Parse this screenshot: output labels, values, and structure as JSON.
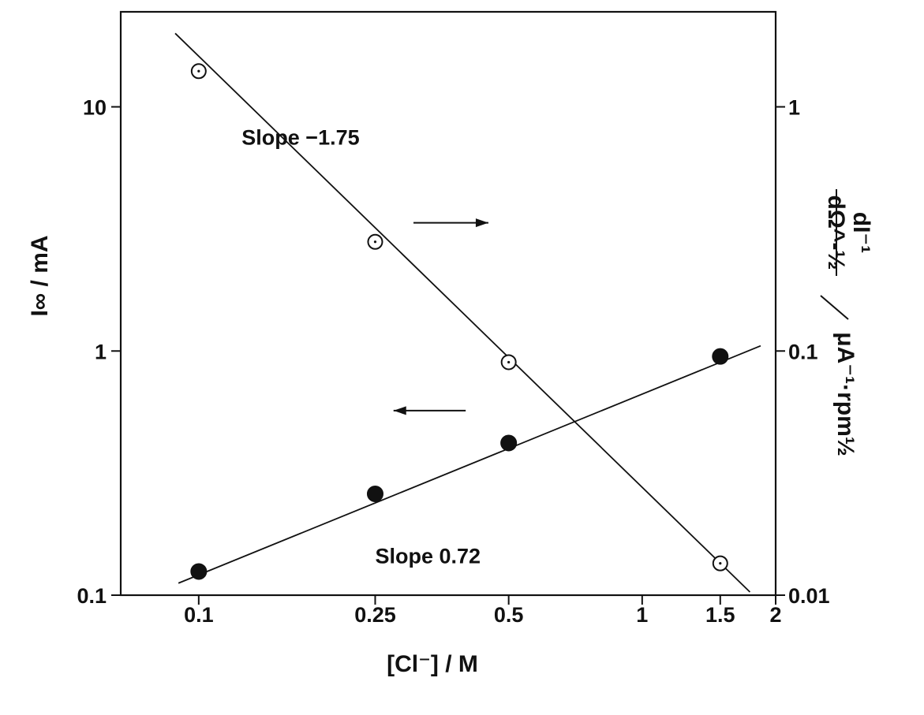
{
  "chart_data": {
    "type": "scatter",
    "title": "",
    "xlabel": "[Cl⁻] / M",
    "ylabel_left": "I∞ / mA",
    "ylabel_right_num": "dI⁻¹",
    "ylabel_right_den": "dΩ^-½",
    "ylabel_right_unit": "μA⁻¹·rpm½",
    "x_scale": "log",
    "y_scale": "log",
    "xlim": [
      0.0667,
      2
    ],
    "ylim_left": [
      0.1,
      24.5
    ],
    "ylim_right": [
      0.01,
      2.45
    ],
    "x_ticks": [
      {
        "value": 0.1,
        "label": "0.1"
      },
      {
        "value": 0.25,
        "label": "0.25"
      },
      {
        "value": 0.5,
        "label": "0.5"
      },
      {
        "value": 1,
        "label": "1"
      },
      {
        "value": 1.5,
        "label": "1.5"
      },
      {
        "value": 2,
        "label": "2"
      }
    ],
    "y_left_ticks": [
      {
        "value": 0.1,
        "label": "0.1"
      },
      {
        "value": 1,
        "label": "1"
      },
      {
        "value": 10,
        "label": "10"
      }
    ],
    "y_right_ticks": [
      {
        "value": 0.01,
        "label": "0.01"
      },
      {
        "value": 0.1,
        "label": "0.1"
      },
      {
        "value": 1,
        "label": "1"
      }
    ],
    "series": [
      {
        "axis": "right",
        "marker": "open-circle",
        "x": [
          0.1,
          0.25,
          0.5,
          1.5
        ],
        "y": [
          1.4,
          0.28,
          0.09,
          0.0135
        ],
        "fit_line": {
          "x": [
            0.0885,
            1.75
          ],
          "y": [
            2.0,
            0.0103
          ]
        }
      },
      {
        "axis": "left",
        "marker": "filled-circle",
        "x": [
          0.1,
          0.25,
          0.5,
          1.5
        ],
        "y": [
          0.125,
          0.26,
          0.42,
          0.95
        ],
        "fit_line": {
          "x": [
            0.09,
            1.85
          ],
          "y": [
            0.112,
            1.05
          ]
        }
      }
    ],
    "annotations": [
      {
        "text": "Slope −1.75",
        "x": 0.125,
        "y": 7.0,
        "axis": "left"
      },
      {
        "text": "Slope 0.72",
        "x": 0.25,
        "y": 0.135,
        "axis": "left"
      }
    ],
    "arrows": [
      {
        "direction": "right",
        "x_from": 0.305,
        "x_to": 0.45,
        "y": 3.35,
        "axis": "left"
      },
      {
        "direction": "left",
        "x_from": 0.4,
        "x_to": 0.275,
        "y": 0.57,
        "axis": "left"
      }
    ],
    "grid": false,
    "legend": "none"
  }
}
